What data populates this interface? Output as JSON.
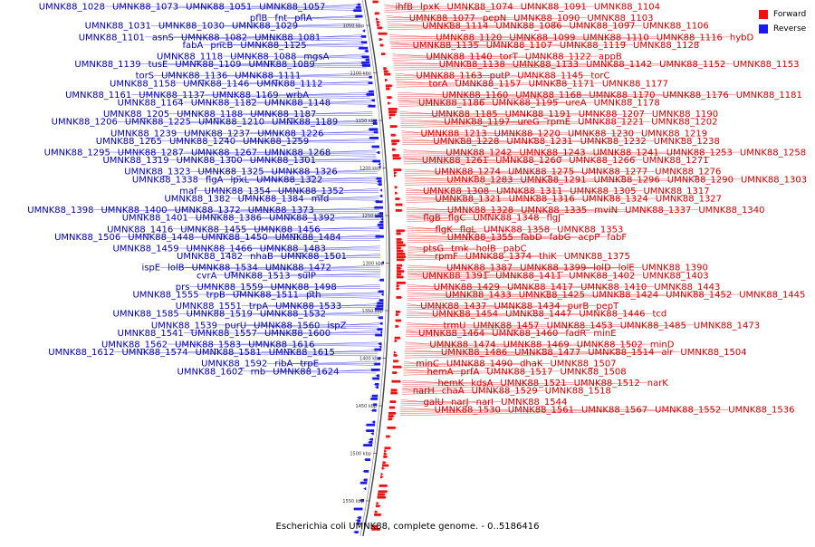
{
  "legend": [
    {
      "label": "Forward",
      "color": "#ee1111"
    },
    {
      "label": "Reverse",
      "color": "#1a1aee"
    }
  ],
  "colors": {
    "forward": "#ee1111",
    "reverse": "#1a1aee",
    "backbone": "#444444",
    "label_forward": "#cc0000",
    "label_reverse": "#0000aa"
  },
  "caption": "Escherichia coli UMNK88, complete genome. - 0..5186416",
  "ticks": [
    "1050 kbp",
    "1100 kbp",
    "1150 kbp",
    "1200 kbp",
    "1250 kbp",
    "1300 kbp",
    "1350 kbp",
    "1400 kbp",
    "1450 kbp",
    "1500 kbp",
    "1550 kbp"
  ],
  "reverse_labels": [
    "UMNK88_1057",
    "UMNK88_1051",
    "UMNK88_1073",
    "UMNK88_1028",
    "pflA",
    "fnt",
    "pflB",
    "UMNK88_1029",
    "UMNK88_1030",
    "UMNK88_1031",
    "UMNK88_1081",
    "UMNK88_1082",
    "asnS",
    "UMNK88_1101",
    "UMNK88_1125",
    "pncB",
    "fabA",
    "mgsA",
    "UMNK88_1088",
    "UMNK88_1118",
    "UMNK88_1089",
    "UMNK88_1109",
    "tusE",
    "UMNK88_1139",
    "UMNK88_1111",
    "UMNK88_1136",
    "torS",
    "UMNK88_1112",
    "UMNK88_1146",
    "UMNK88_1158",
    "wrbA",
    "UMNK88_1169",
    "UMNK88_1137",
    "UMNK88_1161",
    "UMNK88_1148",
    "UMNK88_1182",
    "UMNK88_1164",
    "UMNK88_1187",
    "UMNK88_1188",
    "UMNK88_1205",
    "UMNK88_1189",
    "UMNK88_1210",
    "UMNK88_1225",
    "UMNK88_1206",
    "UMNK88_1226",
    "UMNK88_1237",
    "UMNK88_1239",
    "UMNK88_1259",
    "UMNK88_1240",
    "UMNK88_1265",
    "UMNK88_1268",
    "UMNK88_1267",
    "UMNK88_1287",
    "UMNK88_1295",
    "UMNK88_1301",
    "UMNK88_1300",
    "UMNK88_1319",
    "UMNK88_1326",
    "UMNK88_1325",
    "UMNK88_1323",
    "UMNK88_1322",
    "lpxL",
    "flgA",
    "UMNK88_1338",
    "UMNK88_1352",
    "UMNK88_1354",
    "maf",
    "mfd",
    "UMNK88_1384",
    "UMNK88_1382",
    "UMNK88_1373",
    "UMNK88_1372",
    "UMNK88_1400",
    "UMNK88_1398",
    "UMNK88_1392",
    "UMNK88_1386",
    "UMNK88_1401",
    "UMNK88_1456",
    "UMNK88_1455",
    "UMNK88_1416",
    "UMNK88_1484",
    "UMNK88_1450",
    "UMNK88_1448",
    "UMNK88_1506",
    "UMNK88_1483",
    "UMNK88_1466",
    "UMNK88_1459",
    "UMNK88_1501",
    "nhaB",
    "UMNK88_1482",
    "UMNK88_1472",
    "UMNK88_1534",
    "lolB",
    "ispE",
    "sulP",
    "UMNK88_1513",
    "cvrA",
    "UMNK88_1498",
    "UMNK88_1559",
    "prs",
    "pth",
    "UMNK88_1511",
    "trpB",
    "UMNK88_1555",
    "UMNK88_1533",
    "trpA",
    "UMNK88_1551",
    "UMNK88_1532",
    "UMNK88_1519",
    "UMNK88_1585",
    "ispZ",
    "UMNK88_1560",
    "purU",
    "UMNK88_1539",
    "UMNK88_1600",
    "UMNK88_1557",
    "UMNK88_1541",
    "UMNK88_1616",
    "UMNK88_1583",
    "UMNK88_1562",
    "UMNK88_1615",
    "UMNK88_1581",
    "UMNK88_1574",
    "UMNK88_1612",
    "trpE",
    "ribA",
    "UMNK88_1592",
    "UMNK88_1624",
    "rnb",
    "UMNK88_1602"
  ],
  "forward_labels": [
    "ihfB",
    "lpxK",
    "UMNK88_1074",
    "UMNK88_1091",
    "UMNK88_1104",
    "UMNK88_1077",
    "pepN",
    "UMNK88_1090",
    "UMNK88_1103",
    "UMNK88_1114",
    "UMNK88_1086",
    "UMNK88_1097",
    "UMNK88_1106",
    "UMNK88_1120",
    "UMNK88_1099",
    "UMNK88_1110",
    "UMNK88_1116",
    "hybD",
    "UMNK88_1135",
    "UMNK88_1107",
    "UMNK88_1119",
    "UMNK88_1128",
    "UMNK88_1140",
    "torT",
    "UMNK88_1122",
    "appB",
    "UMNK88_1138",
    "UMNK88_1133",
    "UMNK88_1142",
    "UMNK88_1152",
    "UMNK88_1153",
    "UMNK88_1163",
    "putP",
    "UMNK88_1145",
    "torC",
    "torA",
    "UMNK88_1157",
    "UMNK88_1171",
    "UMNK88_1177",
    "UMNK88_1160",
    "UMNK88_1168",
    "UMNK88_1170",
    "UMNK88_1176",
    "UMNK88_1181",
    "UMNK88_1186",
    "UMNK88_1195",
    "ureA",
    "UMNK88_1178",
    "UMNK88_1185",
    "UMNK88_1191",
    "UMNK88_1207",
    "UMNK88_1190",
    "UMNK88_1197",
    "ureG",
    "rpmE",
    "UMNK88_1221",
    "UMNK88_1202",
    "UMNK88_1213",
    "UMNK88_1220",
    "UMNK88_1230",
    "UMNK88_1219",
    "UMNK88_1228",
    "UMNK88_1231",
    "UMNK88_1232",
    "UMNK88_1238",
    "UMNK88_1242",
    "UMNK88_1243",
    "UMNK88_1241",
    "UMNK88_1253",
    "UMNK88_1258",
    "UMNK88_1261",
    "UMNK88_1260",
    "UMNK88_1266",
    "UMNK88_1271",
    "UMNK88_1274",
    "UMNK88_1275",
    "UMNK88_1277",
    "UMNK88_1276",
    "UMNK88_1283",
    "UMNK88_1291",
    "UMNK88_1296",
    "UMNK88_1290",
    "UMNK88_1303",
    "UMNK88_1308",
    "UMNK88_1311",
    "UMNK88_1305",
    "UMNK88_1317",
    "UMNK88_1321",
    "UMNK88_1316",
    "UMNK88_1324",
    "UMNK88_1327",
    "UMNK88_1328",
    "UMNK88_1335",
    "mviN",
    "UMNK88_1337",
    "UMNK88_1340",
    "flgB",
    "flgC",
    "UMNK88_1348",
    "flgJ",
    "flgK",
    "flgL",
    "UMNK88_1358",
    "UMNK88_1353",
    "UMNK88_1355",
    "fabD",
    "fabG",
    "acpP",
    "fabF",
    "ptsG",
    "tmk",
    "holB",
    "pabC",
    "rpmF",
    "UMNK88_1374",
    "thiK",
    "UMNK88_1375",
    "UMNK88_1387",
    "UMNK88_1399",
    "lolD",
    "lolE",
    "UMNK88_1390",
    "UMNK88_1391",
    "UMNK88_1411",
    "UMNK88_1402",
    "UMNK88_1403",
    "UMNK88_1429",
    "UMNK88_1417",
    "UMNK88_1410",
    "UMNK88_1443",
    "UMNK88_1433",
    "UMNK88_1425",
    "UMNK88_1424",
    "UMNK88_1452",
    "UMNK88_1445",
    "UMNK88_1437",
    "UMNK88_1434",
    "purB",
    "pepT",
    "UMNK88_1454",
    "UMNK88_1447",
    "UMNK88_1446",
    "tcd",
    "trmU",
    "UMNK88_1457",
    "UMNK88_1453",
    "UMNK88_1485",
    "UMNK88_1473",
    "UMNK88_1464",
    "UMNK88_1460",
    "fadR",
    "minE",
    "UMNK88_1474",
    "UMNK88_1469",
    "UMNK88_1502",
    "minD",
    "UMNK88_1486",
    "UMNK88_1477",
    "UMNK88_1514",
    "alr",
    "UMNK88_1504",
    "minC",
    "UMNK88_1490",
    "dhaK",
    "UMNK88_1507",
    "hemA",
    "prfA",
    "UMNK88_1517",
    "UMNK88_1508",
    "hemK",
    "kdsA",
    "UMNK88_1521",
    "UMNK88_1512",
    "narK",
    "narH",
    "chaA",
    "UMNK88_1529",
    "UMNK88_1518",
    "galU",
    "narJ",
    "narI",
    "UMNK88_1544",
    "UMNK88_1530",
    "UMNK88_1561",
    "UMNK88_1567",
    "UMNK88_1552",
    "UMNK88_1536"
  ]
}
